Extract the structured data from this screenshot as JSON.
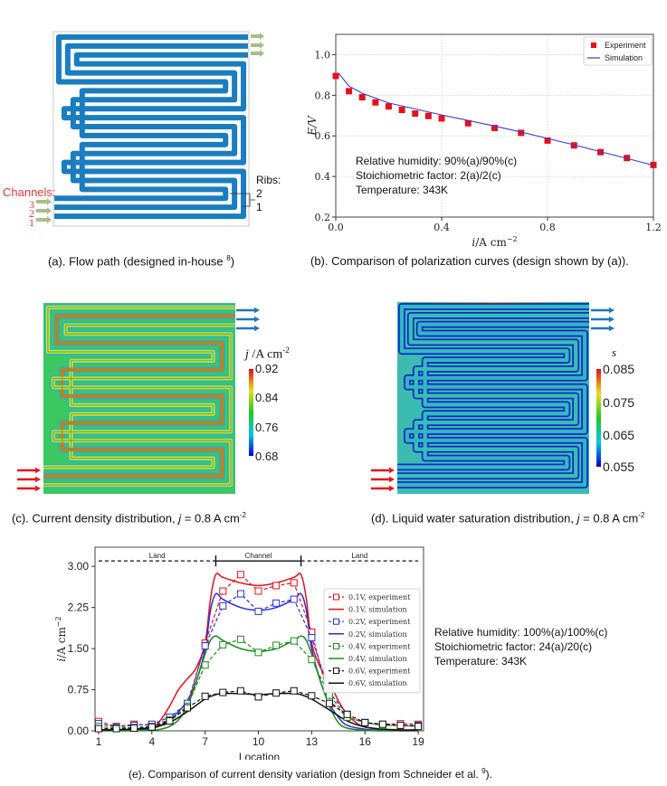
{
  "panels": {
    "a": {
      "caption": "(a). Flow path (designed in-house ",
      "caption_ref": "8",
      "caption_end": ")",
      "channels_label": "Channels:",
      "channel_numbers": [
        "3",
        "2",
        "1"
      ],
      "ribs_label": "Ribs:",
      "rib_numbers": [
        "2",
        "1"
      ],
      "channel_color": "#1a7dc0",
      "arrow_color": "#a9bd8a",
      "label_color": "#e23b3b"
    },
    "b": {
      "caption": "(b). Comparison of polarization curves (design shown by (a)).",
      "info": [
        "Relative humidity: 90%(a)/90%(c)",
        "Stoichiometric factor: 2(a)/2(c)",
        "Temperature: 343K"
      ]
    },
    "c": {
      "caption": "(c). Current density distribution, ",
      "caption_var": "j",
      "caption_val": " = 0.8 A cm",
      "caption_sup": "-2",
      "colorbar_title_var": "j",
      "colorbar_title_unit": " /A cm",
      "colorbar_title_sup": "-2",
      "colorbar_ticks": [
        "0.92",
        "0.84",
        "0.76",
        "0.68"
      ],
      "inlet_arrow_color": "#e8151a",
      "outlet_arrow_color": "#1f77c0"
    },
    "d": {
      "caption": "(d). Liquid water saturation distribution, ",
      "caption_var": "j",
      "caption_val": " = 0.8 A cm",
      "caption_sup": "-2",
      "colorbar_title": "s",
      "colorbar_ticks": [
        "0.085",
        "0.075",
        "0.065",
        "0.055"
      ]
    },
    "e": {
      "caption": "(e). Comparison of current density variation (design from Schneider et al. ",
      "caption_ref": "9",
      "caption_end": ").",
      "info": [
        "Relative humidity: 100%(a)/100%(c)",
        "Stoichiometric factor: 24(a)/20(c)",
        "Temperature: 343K"
      ]
    }
  },
  "chart_data": [
    {
      "id": "polarization",
      "type": "scatter",
      "title": "",
      "xlabel": "i/A cm^-2",
      "ylabel": "E/V",
      "xlim": [
        0.0,
        1.2
      ],
      "ylim": [
        0.2,
        1.1
      ],
      "xticks": [
        "0.0",
        "0.4",
        "0.8",
        "1.2"
      ],
      "xtick_values": [
        0.0,
        0.4,
        0.8,
        1.2
      ],
      "yticks": [
        "0.2",
        "0.4",
        "0.6",
        "0.8",
        "1.0"
      ],
      "ytick_values": [
        0.2,
        0.4,
        0.6,
        0.8,
        1.0
      ],
      "grid": true,
      "legend_position": "top-right",
      "series": [
        {
          "name": "Experiment",
          "kind": "markers",
          "color": "#e8101a",
          "x": [
            0.0,
            0.05,
            0.1,
            0.15,
            0.2,
            0.25,
            0.3,
            0.35,
            0.4,
            0.5,
            0.6,
            0.7,
            0.8,
            0.9,
            1.0,
            1.1,
            1.2
          ],
          "y": [
            0.895,
            0.82,
            0.79,
            0.765,
            0.745,
            0.728,
            0.71,
            0.698,
            0.686,
            0.662,
            0.639,
            0.615,
            0.577,
            0.553,
            0.52,
            0.491,
            0.457
          ]
        },
        {
          "name": "Simulation",
          "kind": "line",
          "color": "#3a3ad6",
          "x": [
            0.01,
            0.05,
            0.1,
            0.2,
            0.3,
            0.4,
            0.5,
            0.6,
            0.7,
            0.8,
            0.9,
            1.0,
            1.1,
            1.2
          ],
          "y": [
            0.91,
            0.845,
            0.81,
            0.762,
            0.733,
            0.703,
            0.676,
            0.648,
            0.619,
            0.587,
            0.556,
            0.522,
            0.489,
            0.455
          ]
        }
      ]
    },
    {
      "id": "current-density-variation",
      "type": "line",
      "title": "",
      "xlabel": "Location",
      "ylabel": "i/A cm^-2",
      "xlim": [
        0.8,
        19.3
      ],
      "ylim": [
        0.0,
        3.35
      ],
      "xticks": [
        "1",
        "4",
        "7",
        "10",
        "13",
        "16",
        "19"
      ],
      "xtick_values": [
        1,
        4,
        7,
        10,
        13,
        16,
        19
      ],
      "yticks": [
        "0.00",
        "0.75",
        "1.50",
        "2.25",
        "3.00"
      ],
      "ytick_values": [
        0.0,
        0.75,
        1.5,
        2.25,
        3.0
      ],
      "grid": false,
      "legend_position": "right",
      "annotations": {
        "land_left": "Land",
        "channel": "Channel",
        "land_right": "Land",
        "y_level": 3.1,
        "channel_start": 7.6,
        "channel_end": 12.4
      },
      "series": [
        {
          "name": "0.1V, experiment",
          "kind": "dashed-markers",
          "color": "#e8101a",
          "x": [
            1,
            2,
            3,
            4,
            5,
            6,
            7,
            8,
            9,
            10,
            11,
            12,
            13,
            14,
            15,
            16,
            17,
            18,
            19
          ],
          "y": [
            0.17,
            0.08,
            0.12,
            0.1,
            0.2,
            0.42,
            1.6,
            2.55,
            2.85,
            2.55,
            2.65,
            2.7,
            1.8,
            0.55,
            0.25,
            0.15,
            0.12,
            0.13,
            0.12
          ]
        },
        {
          "name": "0.1V, simulation",
          "kind": "line",
          "color": "#e8101a",
          "x": [
            1,
            2,
            3,
            4,
            4.5,
            5,
            5.5,
            6,
            6.5,
            7,
            7.3,
            7.6,
            8,
            9,
            10,
            11,
            12,
            12.4,
            12.7,
            13,
            13.5,
            14,
            14.5,
            15,
            15.5,
            16,
            17,
            18,
            19
          ],
          "y": [
            0.02,
            0.02,
            0.03,
            0.06,
            0.2,
            0.45,
            0.75,
            0.95,
            1.15,
            1.6,
            2.4,
            2.85,
            2.8,
            2.7,
            2.65,
            2.7,
            2.8,
            2.85,
            2.4,
            1.6,
            1.15,
            0.9,
            0.55,
            0.3,
            0.15,
            0.07,
            0.03,
            0.02,
            0.02
          ]
        },
        {
          "name": "0.2V, experiment",
          "kind": "dashed-markers",
          "color": "#2b2be0",
          "x": [
            1,
            2,
            3,
            4,
            5,
            6,
            7,
            8,
            9,
            10,
            11,
            12,
            13,
            14,
            15,
            16,
            17,
            18,
            19
          ],
          "y": [
            0.13,
            0.07,
            0.1,
            0.12,
            0.25,
            0.5,
            1.55,
            2.28,
            2.5,
            2.18,
            2.33,
            2.4,
            1.7,
            0.7,
            0.3,
            0.15,
            0.1,
            0.1,
            0.1
          ]
        },
        {
          "name": "0.2V, simulation",
          "kind": "line",
          "color": "#2b2be0",
          "x": [
            1,
            2,
            3,
            4,
            4.5,
            5,
            5.5,
            6,
            6.5,
            7,
            7.3,
            7.6,
            8,
            9,
            10,
            11,
            12,
            12.4,
            12.7,
            13,
            13.5,
            14,
            14.5,
            15,
            16,
            17,
            18,
            19
          ],
          "y": [
            0.01,
            0.01,
            0.02,
            0.04,
            0.1,
            0.2,
            0.35,
            0.55,
            0.9,
            1.5,
            2.2,
            2.5,
            2.4,
            2.25,
            2.2,
            2.25,
            2.4,
            2.5,
            2.2,
            1.5,
            0.9,
            0.5,
            0.25,
            0.1,
            0.03,
            0.01,
            0.01,
            0.01
          ]
        },
        {
          "name": "0.4V, experiment",
          "kind": "dashed-markers",
          "color": "#1a8a1a",
          "x": [
            1,
            2,
            3,
            4,
            5,
            6,
            7,
            8,
            9,
            10,
            11,
            12,
            13,
            14,
            15,
            16,
            17,
            18,
            19
          ],
          "y": [
            0.08,
            0.05,
            0.06,
            0.08,
            0.2,
            0.45,
            1.2,
            1.57,
            1.67,
            1.43,
            1.56,
            1.64,
            1.3,
            0.65,
            0.25,
            0.15,
            0.1,
            0.1,
            0.08
          ]
        },
        {
          "name": "0.4V, simulation",
          "kind": "line",
          "color": "#1a8a1a",
          "x": [
            1,
            2,
            3,
            4,
            4.5,
            5,
            5.5,
            6,
            6.5,
            7,
            7.3,
            7.6,
            8,
            9,
            10,
            11,
            12,
            12.4,
            12.7,
            13,
            13.5,
            14,
            14.5,
            15,
            16,
            17,
            18,
            19
          ],
          "y": [
            0.0,
            0.0,
            0.0,
            0.01,
            0.03,
            0.08,
            0.2,
            0.45,
            0.9,
            1.4,
            1.65,
            1.73,
            1.65,
            1.5,
            1.45,
            1.5,
            1.65,
            1.73,
            1.65,
            1.4,
            0.9,
            0.45,
            0.15,
            0.05,
            0.01,
            0.0,
            0.0,
            0.0
          ]
        },
        {
          "name": "0.6V, experiment",
          "kind": "dashed-markers",
          "color": "#111111",
          "x": [
            1,
            2,
            3,
            4,
            5,
            6,
            7,
            8,
            9,
            10,
            11,
            12,
            13,
            14,
            15,
            16,
            17,
            18,
            19
          ],
          "y": [
            0.04,
            0.04,
            0.05,
            0.07,
            0.18,
            0.42,
            0.63,
            0.7,
            0.73,
            0.62,
            0.69,
            0.73,
            0.64,
            0.5,
            0.3,
            0.15,
            0.12,
            0.1,
            0.08
          ]
        },
        {
          "name": "0.6V, simulation",
          "kind": "line",
          "color": "#111111",
          "x": [
            1,
            2,
            3,
            4,
            5,
            6,
            7,
            7.6,
            8,
            9,
            10,
            11,
            12,
            12.4,
            13,
            14,
            15,
            16,
            17,
            18,
            19
          ],
          "y": [
            0.01,
            0.02,
            0.03,
            0.06,
            0.15,
            0.35,
            0.58,
            0.66,
            0.68,
            0.68,
            0.66,
            0.68,
            0.68,
            0.66,
            0.58,
            0.38,
            0.18,
            0.07,
            0.03,
            0.01,
            0.01
          ]
        }
      ]
    }
  ]
}
